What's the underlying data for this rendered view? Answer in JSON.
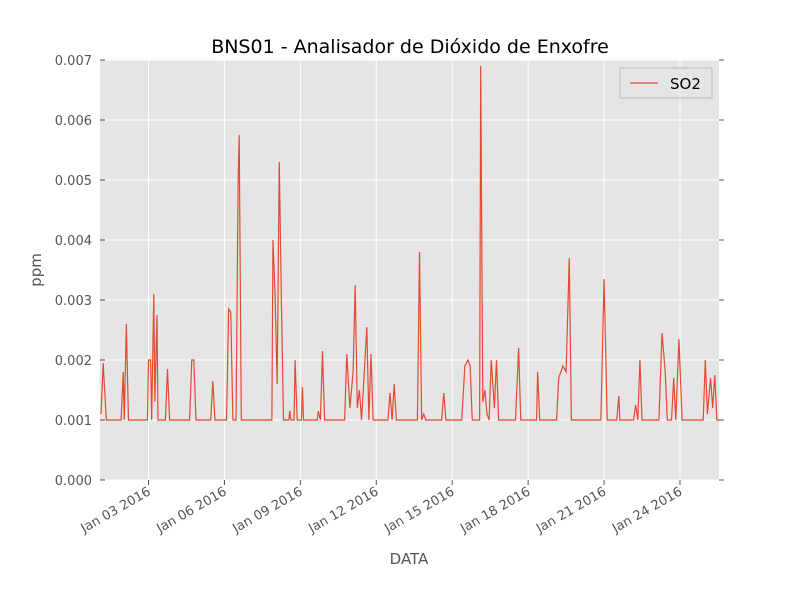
{
  "chart_data": {
    "type": "line",
    "title": "BNS01 - Analisador de Dióxido de Enxofre",
    "xlabel": "DATA",
    "ylabel": "ppm",
    "grid": true,
    "legend": "upper right",
    "xlim": [
      "2016-01-01 02:00",
      "2016-01-25 13:00"
    ],
    "ylim": [
      0,
      0.007
    ],
    "xticks": [
      {
        "value": "2016-01-03 00:00",
        "label": "Jan 03 2016"
      },
      {
        "value": "2016-01-06 00:00",
        "label": "Jan 06 2016"
      },
      {
        "value": "2016-01-09 00:00",
        "label": "Jan 09 2016"
      },
      {
        "value": "2016-01-12 00:00",
        "label": "Jan 12 2016"
      },
      {
        "value": "2016-01-15 00:00",
        "label": "Jan 15 2016"
      },
      {
        "value": "2016-01-18 00:00",
        "label": "Jan 18 2016"
      },
      {
        "value": "2016-01-21 00:00",
        "label": "Jan 21 2016"
      },
      {
        "value": "2016-01-24 00:00",
        "label": "Jan 24 2016"
      }
    ],
    "yticks": [
      {
        "value": 0,
        "label": "0.000"
      },
      {
        "value": 0.001,
        "label": "0.001"
      },
      {
        "value": 0.002,
        "label": "0.002"
      },
      {
        "value": 0.003,
        "label": "0.003"
      },
      {
        "value": 0.004,
        "label": "0.004"
      },
      {
        "value": 0.005,
        "label": "0.005"
      },
      {
        "value": 0.006,
        "label": "0.006"
      },
      {
        "value": 0.007,
        "label": "0.007"
      }
    ],
    "x": [
      "2016-01-01 03:00",
      "2016-01-01 05:00",
      "2016-01-01 08:00",
      "2016-01-01 22:00",
      "2016-01-02 00:00",
      "2016-01-02 01:00",
      "2016-01-02 03:00",
      "2016-01-02 05:00",
      "2016-01-02 23:00",
      "2016-01-03 00:00",
      "2016-01-03 02:00",
      "2016-01-03 03:00",
      "2016-01-03 05:00",
      "2016-01-03 06:00",
      "2016-01-03 08:00",
      "2016-01-03 09:00",
      "2016-01-03 16:00",
      "2016-01-03 18:00",
      "2016-01-03 20:00",
      "2016-01-04 15:00",
      "2016-01-04 17:00",
      "2016-01-04 19:00",
      "2016-01-04 21:00",
      "2016-01-05 11:00",
      "2016-01-05 13:00",
      "2016-01-05 15:00",
      "2016-01-06 02:00",
      "2016-01-06 04:00",
      "2016-01-06 06:00",
      "2016-01-06 08:00",
      "2016-01-06 11:00",
      "2016-01-06 13:00",
      "2016-01-06 14:00",
      "2016-01-06 16:00",
      "2016-01-07 21:00",
      "2016-01-07 22:00",
      "2016-01-08 00:00",
      "2016-01-08 02:00",
      "2016-01-08 04:00",
      "2016-01-08 06:00",
      "2016-01-08 08:00",
      "2016-01-08 13:00",
      "2016-01-08 14:00",
      "2016-01-08 15:00",
      "2016-01-08 18:00",
      "2016-01-08 19:00",
      "2016-01-08 21:00",
      "2016-01-09 01:00",
      "2016-01-09 02:00",
      "2016-01-09 03:00",
      "2016-01-09 16:00",
      "2016-01-09 17:00",
      "2016-01-09 19:00",
      "2016-01-09 21:00",
      "2016-01-09 23:00",
      "2016-01-10 18:00",
      "2016-01-10 20:00",
      "2016-01-10 23:00",
      "2016-01-11 02:00",
      "2016-01-11 04:00",
      "2016-01-11 06:00",
      "2016-01-11 08:00",
      "2016-01-11 10:00",
      "2016-01-11 12:00",
      "2016-01-11 15:00",
      "2016-01-11 17:00",
      "2016-01-11 19:00",
      "2016-01-11 21:00",
      "2016-01-12 11:00",
      "2016-01-12 13:00",
      "2016-01-12 15:00",
      "2016-01-12 17:00",
      "2016-01-12 19:00",
      "2016-01-13 15:00",
      "2016-01-13 17:00",
      "2016-01-13 19:00",
      "2016-01-13 21:00",
      "2016-01-13 23:00",
      "2016-01-14 14:00",
      "2016-01-14 16:00",
      "2016-01-14 18:00",
      "2016-01-15 09:00",
      "2016-01-15 12:00",
      "2016-01-15 15:00",
      "2016-01-15 17:00",
      "2016-01-15 19:00",
      "2016-01-16 02:00",
      "2016-01-16 03:00",
      "2016-01-16 05:00",
      "2016-01-16 07:00",
      "2016-01-16 09:00",
      "2016-01-16 11:00",
      "2016-01-16 13:00",
      "2016-01-16 16:00",
      "2016-01-16 18:00",
      "2016-01-16 20:00",
      "2016-01-17 12:00",
      "2016-01-17 15:00",
      "2016-01-17 17:00",
      "2016-01-18 08:00",
      "2016-01-18 09:00",
      "2016-01-18 11:00",
      "2016-01-19 03:00",
      "2016-01-19 05:00",
      "2016-01-19 09:00",
      "2016-01-19 12:00",
      "2016-01-19 15:00",
      "2016-01-19 17:00",
      "2016-01-20 21:00",
      "2016-01-21 00:00",
      "2016-01-21 03:00",
      "2016-01-21 12:00",
      "2016-01-21 14:00",
      "2016-01-21 15:00",
      "2016-01-22 04:00",
      "2016-01-22 06:00",
      "2016-01-22 08:00",
      "2016-01-22 10:00",
      "2016-01-22 12:00",
      "2016-01-23 04:00",
      "2016-01-23 07:00",
      "2016-01-23 10:00",
      "2016-01-23 12:00",
      "2016-01-23 16:00",
      "2016-01-23 18:00",
      "2016-01-23 20:00",
      "2016-01-23 23:00",
      "2016-01-24 02:00",
      "2016-01-24 22:00",
      "2016-01-25 00:00",
      "2016-01-25 02:00",
      "2016-01-25 05:00",
      "2016-01-25 07:00",
      "2016-01-25 09:00",
      "2016-01-25 11:00",
      "2016-01-25 13:00"
    ],
    "series": [
      {
        "name": "SO2",
        "color": "#e24a33",
        "values": [
          0.0011,
          0.00195,
          0.001,
          0.001,
          0.0018,
          0.001,
          0.0026,
          0.001,
          0.001,
          0.002,
          0.002,
          0.001,
          0.0031,
          0.0013,
          0.00275,
          0.001,
          0.001,
          0.00185,
          0.001,
          0.001,
          0.002,
          0.002,
          0.001,
          0.001,
          0.00165,
          0.001,
          0.001,
          0.00285,
          0.0028,
          0.001,
          0.001,
          0.005,
          0.00575,
          0.001,
          0.001,
          0.004,
          0.0031,
          0.0016,
          0.0053,
          0.003,
          0.001,
          0.001,
          0.00115,
          0.001,
          0.001,
          0.002,
          0.001,
          0.001,
          0.00155,
          0.001,
          0.001,
          0.00115,
          0.001,
          0.00215,
          0.001,
          0.001,
          0.0021,
          0.0012,
          0.0018,
          0.00325,
          0.0012,
          0.0015,
          0.001,
          0.0016,
          0.00255,
          0.001,
          0.0021,
          0.001,
          0.001,
          0.00145,
          0.001,
          0.0016,
          0.001,
          0.001,
          0.0038,
          0.001,
          0.0011,
          0.001,
          0.001,
          0.00145,
          0.001,
          0.001,
          0.0019,
          0.002,
          0.0019,
          0.001,
          0.001,
          0.0069,
          0.0013,
          0.0015,
          0.0011,
          0.001,
          0.002,
          0.0012,
          0.002,
          0.001,
          0.001,
          0.0022,
          0.001,
          0.001,
          0.0018,
          0.001,
          0.001,
          0.0017,
          0.0019,
          0.0018,
          0.0037,
          0.001,
          0.001,
          0.00335,
          0.001,
          0.001,
          0.0014,
          0.001,
          0.001,
          0.00125,
          0.001,
          0.002,
          0.001,
          0.001,
          0.00245,
          0.0018,
          0.001,
          0.001,
          0.0017,
          0.001,
          0.00235,
          0.001,
          0.001,
          0.002,
          0.0011,
          0.0017,
          0.0012,
          0.00175,
          0.001,
          0.001
        ]
      }
    ]
  }
}
